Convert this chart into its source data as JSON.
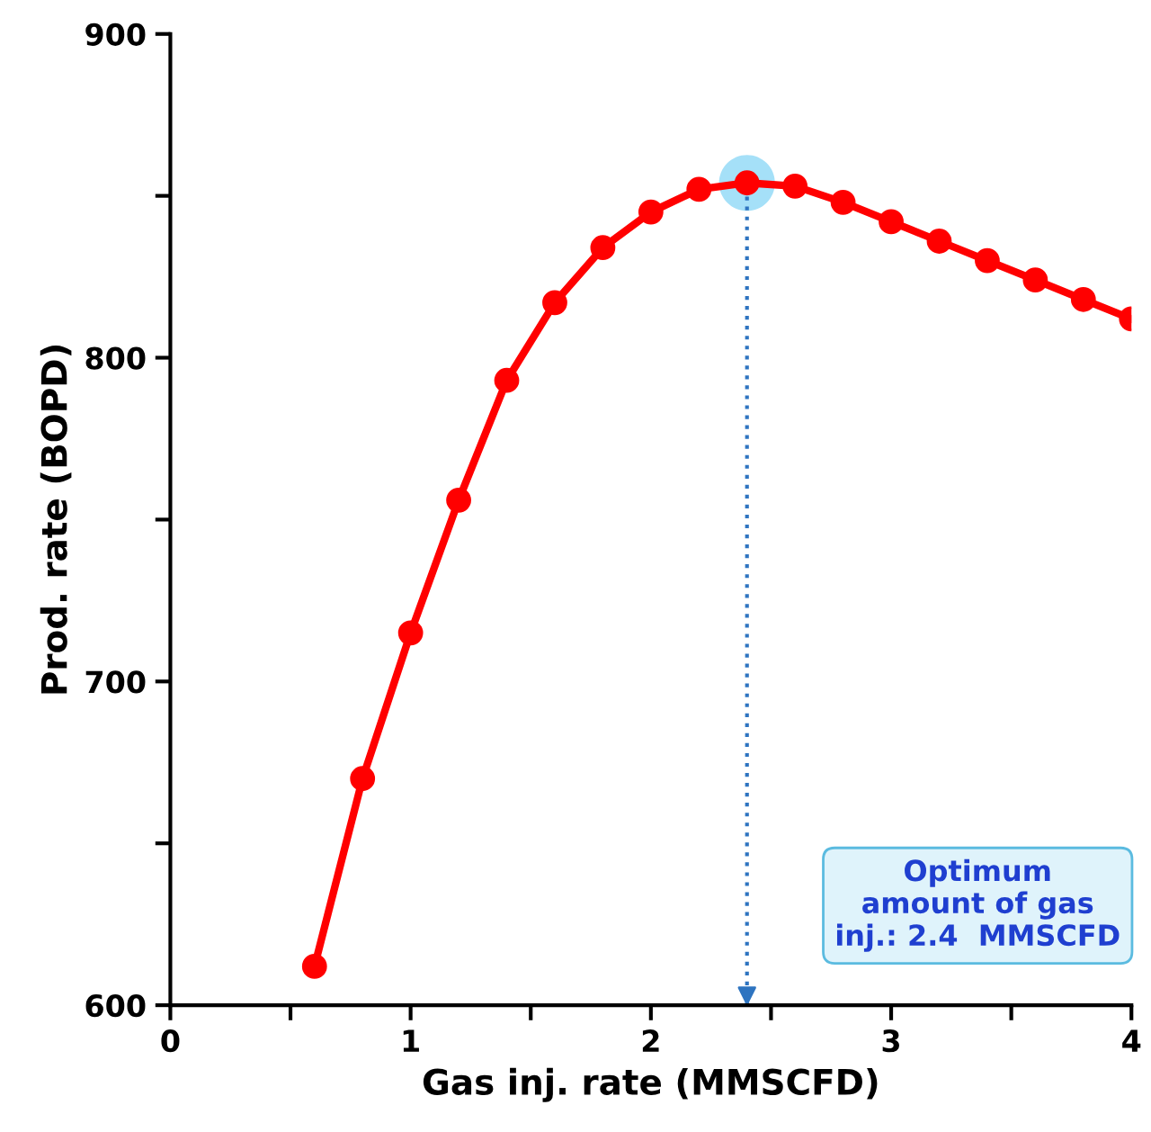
{
  "chart_data": {
    "type": "line",
    "xlabel": "Gas inj. rate (MMSCFD)",
    "ylabel": "Prod. rate (BOPD)",
    "x": [
      0.6,
      0.8,
      1.0,
      1.2,
      1.4,
      1.6,
      1.8,
      2.0,
      2.2,
      2.4,
      2.6,
      2.8,
      3.0,
      3.2,
      3.4,
      3.6,
      3.8,
      4.0
    ],
    "series": [
      {
        "color": "#ff0000",
        "values": [
          612,
          670,
          715,
          756,
          793,
          817,
          834,
          845,
          852,
          854,
          853,
          848,
          842,
          836,
          830,
          824,
          818,
          812
        ]
      }
    ],
    "xlim": [
      0,
      4
    ],
    "ylim": [
      600,
      900
    ],
    "xticks": [
      0,
      {
        "value": 0.5,
        "label": null
      },
      1,
      {
        "value": 1.5,
        "label": null
      },
      2,
      {
        "value": 2.5,
        "label": null
      },
      3,
      {
        "value": 3.5,
        "label": null
      },
      4
    ],
    "yticks": [
      600,
      {
        "value": 650,
        "label": null
      },
      700,
      {
        "value": 750,
        "label": null
      },
      800,
      {
        "value": 850,
        "label": null
      },
      900
    ],
    "marker": "circle",
    "line_style": "solid",
    "grid": false,
    "legend": false,
    "ref_lines": [
      {
        "axis": "x",
        "value": 2.4,
        "color": "#2e74c0",
        "line_style": "dotted"
      }
    ],
    "annotations": [
      "Optimum\namount of gas\ninj.: 2.4  MMSCFD"
    ]
  }
}
